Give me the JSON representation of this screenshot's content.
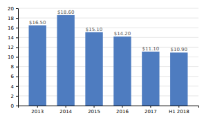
{
  "chart_data": {
    "type": "bar",
    "categories": [
      "2013",
      "2014",
      "2015",
      "2016",
      "2017",
      "H1 2018"
    ],
    "values": [
      16.5,
      18.6,
      15.1,
      14.2,
      11.1,
      10.9
    ],
    "value_labels": [
      "$16.50",
      "$18.60",
      "$15.10",
      "$14.20",
      "$11.10",
      "$10.90"
    ],
    "color": "#4e7cc0",
    "ylim": [
      0,
      20
    ],
    "yticks": [
      0,
      2,
      4,
      6,
      8,
      10,
      12,
      14,
      16,
      18,
      20
    ],
    "grid": true,
    "data_labels": true
  }
}
